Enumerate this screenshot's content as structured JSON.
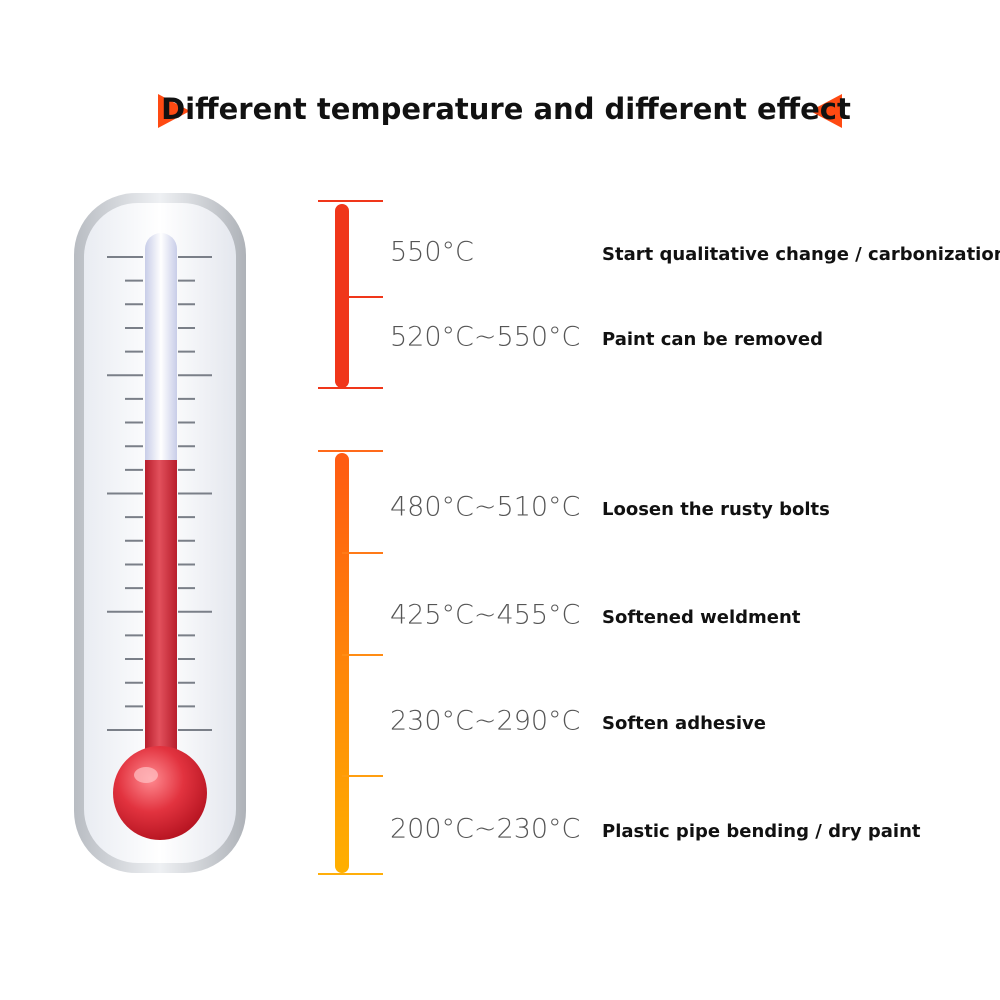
{
  "title": "Different temperature and different effect",
  "rows": [
    {
      "temp": "550°C",
      "effect": "Start qualitative change / carbonization"
    },
    {
      "temp": "520°C~550°C",
      "effect": "Paint can be removed"
    },
    {
      "temp": "480°C~510°C",
      "effect": "Loosen the rusty bolts"
    },
    {
      "temp": "425°C~455°C",
      "effect": "Softened weldment"
    },
    {
      "temp": "230°C~290°C",
      "effect": "Soften adhesive"
    },
    {
      "temp": "200°C~230°C",
      "effect": "Plastic pipe bending / dry paint"
    }
  ]
}
